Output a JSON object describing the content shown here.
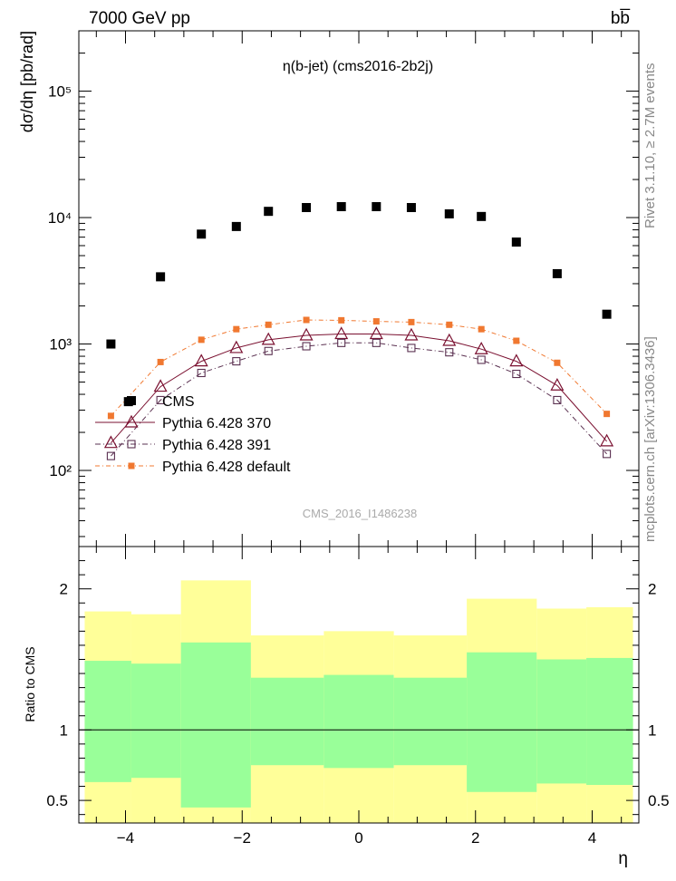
{
  "header": {
    "energy_label": "7000 GeV pp",
    "process_label": "bb̅"
  },
  "side_labels": {
    "rivet": "Rivet 3.1.10, ≥ 2.7M events",
    "mcplots": "mcplots.cern.ch [arXiv:1306.3436]"
  },
  "colors": {
    "data": "#000000",
    "p370": "#7a1030",
    "p391": "#5a3050",
    "pdefault": "#f07830",
    "band_outer": "#ffff99",
    "band_inner": "#99ff99"
  },
  "chart_data": [
    {
      "type": "scatter",
      "title": "η(b-jet) (cms2016-2b2j)",
      "ylabel": "dσ/dη [pb/rad]",
      "watermark": "CMS_2016_I1486238",
      "yscale": "log",
      "xlim": [
        -4.8,
        4.8
      ],
      "ylim": [
        25,
        300000
      ],
      "y_ticks": [
        {
          "value": 100,
          "label": "10²"
        },
        {
          "value": 1000,
          "label": "10³"
        },
        {
          "value": 10000,
          "label": "10⁴"
        },
        {
          "value": 100000,
          "label": "10⁵"
        }
      ],
      "legend_position": "bottom-left",
      "series": [
        {
          "name": "CMS",
          "style": "data",
          "x": [
            -4.25,
            -3.95,
            -3.4,
            -2.7,
            -2.1,
            -1.55,
            -0.9,
            -0.3,
            0.3,
            0.9,
            1.55,
            2.1,
            2.7,
            3.4,
            4.25
          ],
          "y": [
            1000,
            350,
            3400,
            7400,
            8500,
            11200,
            12000,
            12200,
            12200,
            12000,
            10700,
            10200,
            6400,
            3600,
            1720
          ]
        },
        {
          "name": "Pythia 6.428 370",
          "style": "triangle",
          "x": [
            -4.25,
            -3.4,
            -2.7,
            -2.1,
            -1.55,
            -0.9,
            -0.3,
            0.3,
            0.9,
            1.55,
            2.1,
            2.7,
            3.4,
            4.25
          ],
          "y": [
            165,
            460,
            730,
            930,
            1080,
            1170,
            1200,
            1200,
            1170,
            1060,
            910,
            730,
            470,
            170
          ]
        },
        {
          "name": "Pythia 6.428 391",
          "style": "square",
          "x": [
            -4.25,
            -3.4,
            -2.7,
            -2.1,
            -1.55,
            -0.9,
            -0.3,
            0.3,
            0.9,
            1.55,
            2.1,
            2.7,
            3.4,
            4.25
          ],
          "y": [
            130,
            360,
            590,
            730,
            880,
            960,
            1020,
            1020,
            930,
            860,
            750,
            580,
            360,
            135
          ]
        },
        {
          "name": "Pythia 6.428 default",
          "style": "filled-square",
          "x": [
            -4.25,
            -3.4,
            -2.7,
            -2.1,
            -1.55,
            -0.9,
            -0.3,
            0.3,
            0.9,
            1.55,
            2.1,
            2.7,
            3.4,
            4.25
          ],
          "y": [
            270,
            720,
            1080,
            1310,
            1420,
            1550,
            1540,
            1510,
            1490,
            1420,
            1310,
            1060,
            710,
            280
          ]
        }
      ]
    },
    {
      "type": "area",
      "ylabel": "Ratio to CMS",
      "xlabel": "η",
      "xlim": [
        -4.8,
        4.8
      ],
      "ylim": [
        0.34,
        2.3
      ],
      "x_ticks": [
        {
          "value": -4,
          "label": "−4"
        },
        {
          "value": -2,
          "label": "−2"
        },
        {
          "value": 0,
          "label": "0"
        },
        {
          "value": 2,
          "label": "2"
        },
        {
          "value": 4,
          "label": "4"
        }
      ],
      "y_ticks": [
        {
          "value": 0.5,
          "label": "0.5"
        },
        {
          "value": 1,
          "label": "1"
        },
        {
          "value": 2,
          "label": "2"
        }
      ],
      "reference_line": 1,
      "bands": [
        {
          "x0": -4.7,
          "x1": -3.9,
          "outer": [
            0.33,
            1.84
          ],
          "inner": [
            0.63,
            1.49
          ]
        },
        {
          "x0": -3.9,
          "x1": -3.05,
          "outer": [
            0.33,
            1.82
          ],
          "inner": [
            0.66,
            1.47
          ]
        },
        {
          "x0": -3.05,
          "x1": -1.85,
          "outer": [
            0.33,
            2.06
          ],
          "inner": [
            0.45,
            1.62
          ]
        },
        {
          "x0": -1.85,
          "x1": -0.6,
          "outer": [
            0.33,
            1.67
          ],
          "inner": [
            0.75,
            1.37
          ]
        },
        {
          "x0": -0.6,
          "x1": 0.6,
          "outer": [
            0.33,
            1.7
          ],
          "inner": [
            0.73,
            1.39
          ]
        },
        {
          "x0": 0.6,
          "x1": 1.85,
          "outer": [
            0.33,
            1.67
          ],
          "inner": [
            0.75,
            1.37
          ]
        },
        {
          "x0": 1.85,
          "x1": 3.05,
          "outer": [
            0.33,
            1.93
          ],
          "inner": [
            0.56,
            1.55
          ]
        },
        {
          "x0": 3.05,
          "x1": 3.9,
          "outer": [
            0.33,
            1.86
          ],
          "inner": [
            0.62,
            1.5
          ]
        },
        {
          "x0": 3.9,
          "x1": 4.7,
          "outer": [
            0.33,
            1.87
          ],
          "inner": [
            0.61,
            1.51
          ]
        }
      ]
    }
  ]
}
